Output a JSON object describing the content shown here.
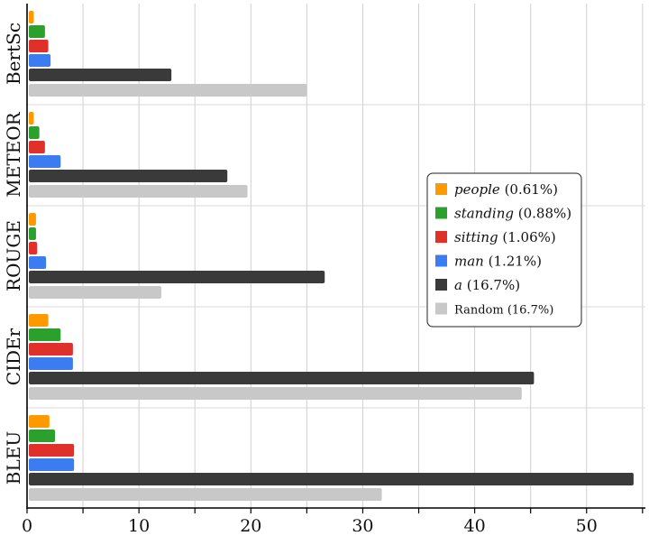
{
  "chart_data": {
    "type": "bar",
    "orientation": "horizontal",
    "categories": [
      "BLEU",
      "CIDEr",
      "ROUGE",
      "METEOR",
      "BertSc"
    ],
    "xlim": [
      0,
      55
    ],
    "xticks": [
      0,
      10,
      20,
      30,
      40,
      50
    ],
    "grid": true,
    "legend_position": "right",
    "series": [
      {
        "name": "people",
        "pct": "(0.61%)",
        "italic": true,
        "color": "#ff9900",
        "values": [
          2.0,
          1.9,
          0.8,
          0.6,
          0.6
        ]
      },
      {
        "name": "standing",
        "pct": "(0.88%)",
        "italic": true,
        "color": "#2ca02c",
        "values": [
          2.5,
          3.0,
          0.8,
          1.1,
          1.6
        ]
      },
      {
        "name": "sitting",
        "pct": "(1.06%)",
        "italic": true,
        "color": "#e0302a",
        "values": [
          4.2,
          4.1,
          0.9,
          1.6,
          1.9
        ]
      },
      {
        "name": "man",
        "pct": "(1.21%)",
        "italic": true,
        "color": "#3b7df0",
        "values": [
          4.2,
          4.1,
          1.7,
          3.0,
          2.1
        ]
      },
      {
        "name": "a",
        "pct": "(16.7%)",
        "italic": true,
        "color": "#3a3a3a",
        "values": [
          54.2,
          45.3,
          26.6,
          17.9,
          12.9
        ]
      },
      {
        "name": "Random",
        "pct": "(16.7%)",
        "italic": false,
        "color": "#c8c8c8",
        "values": [
          31.7,
          44.2,
          12.0,
          19.7,
          25.0
        ]
      }
    ]
  }
}
